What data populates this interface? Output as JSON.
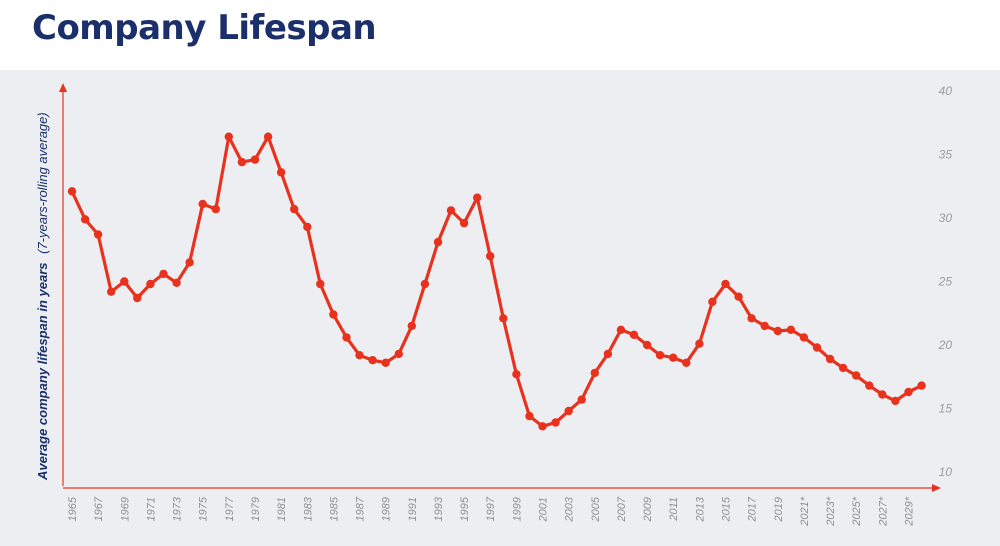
{
  "title": "Company Lifespan",
  "chart_data": {
    "type": "line",
    "title": "Company Lifespan",
    "ylabel_main": "Average company lifespan in years",
    "ylabel_note": "(7-years-rolling average)",
    "xlabel": "",
    "ylim": [
      10,
      40
    ],
    "yticks": [
      10,
      15,
      20,
      25,
      30,
      35,
      40
    ],
    "grid": false,
    "line_color": "#e8321e",
    "x_tick_labels": [
      "1965",
      "1967",
      "1969",
      "1971",
      "1973",
      "1975",
      "1977",
      "1979",
      "1981",
      "1983",
      "1985",
      "1987",
      "1989",
      "1991",
      "1993",
      "1995",
      "1997",
      "1999",
      "2001",
      "2003",
      "2005",
      "2007",
      "2009",
      "2011",
      "2013",
      "2015",
      "2017",
      "2019",
      "2021*",
      "2023*",
      "2025*",
      "2027*",
      "2029*"
    ],
    "series": [
      {
        "x": [
          "1965",
          "1966",
          "1967",
          "1968",
          "1969",
          "1970",
          "1971",
          "1972",
          "1973",
          "1974",
          "1975",
          "1976",
          "1977",
          "1978",
          "1979",
          "1980",
          "1981",
          "1982",
          "1983",
          "1984",
          "1985",
          "1986",
          "1987",
          "1988",
          "1989",
          "1990",
          "1991",
          "1992",
          "1993",
          "1994",
          "1995",
          "1996",
          "1997",
          "1998",
          "1999",
          "2000",
          "2001",
          "2002",
          "2003",
          "2004",
          "2005",
          "2006",
          "2007",
          "2008",
          "2009",
          "2010",
          "2011",
          "2012",
          "2013",
          "2014",
          "2015",
          "2016",
          "2017",
          "2018",
          "2019",
          "2020",
          "2021",
          "2022",
          "2023",
          "2024",
          "2025",
          "2026",
          "2027",
          "2028",
          "2029",
          "2030"
        ],
        "values": [
          32.1,
          29.9,
          28.7,
          24.2,
          25.0,
          23.7,
          24.8,
          25.6,
          24.9,
          26.5,
          31.1,
          30.7,
          36.4,
          34.4,
          34.6,
          36.4,
          33.6,
          30.7,
          29.3,
          24.8,
          22.4,
          20.6,
          19.2,
          18.8,
          18.6,
          19.3,
          21.5,
          24.8,
          28.1,
          30.6,
          29.6,
          31.6,
          27.0,
          22.1,
          17.7,
          14.4,
          13.6,
          13.9,
          14.8,
          15.7,
          17.8,
          19.3,
          21.2,
          20.8,
          20.0,
          19.2,
          19.0,
          18.6,
          20.1,
          23.4,
          24.8,
          23.8,
          22.1,
          21.5,
          21.1,
          21.2,
          20.6,
          19.8,
          18.9,
          18.2,
          17.6,
          16.8,
          16.1,
          15.6,
          16.3,
          16.8
        ]
      }
    ]
  }
}
